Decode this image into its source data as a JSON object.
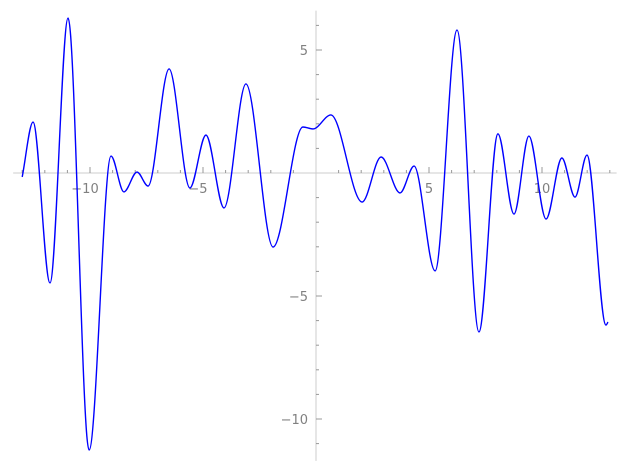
{
  "chart_data": {
    "type": "line",
    "title": "",
    "xlabel": "",
    "ylabel": "",
    "xlim": [
      -13.4,
      13.3
    ],
    "ylim": [
      -11.7,
      6.6
    ],
    "x_major_ticks": [
      -10,
      -5,
      5,
      10
    ],
    "x_tick_labels": [
      "−10",
      "−5",
      "5",
      "10"
    ],
    "y_major_ticks": [
      5,
      -5,
      -10
    ],
    "y_tick_labels": [
      "5",
      "−5",
      "−10"
    ],
    "minor_tick_step": 1,
    "grid": false,
    "line_color": "#0000ff",
    "axis_color": "#cccccc",
    "series": [
      {
        "x": [
          -13.0,
          -12.52,
          -11.77,
          -10.97,
          -10.04,
          -9.07,
          -8.5,
          -7.92,
          -7.43,
          -6.5,
          -5.58,
          -4.87,
          -4.07,
          -3.1,
          -1.9,
          -0.58,
          -0.13,
          0.66,
          2.04,
          2.88,
          3.72,
          4.34,
          5.27,
          6.24,
          7.21,
          8.05,
          8.76,
          9.42,
          10.18,
          10.88,
          11.46,
          11.99,
          12.83,
          12.92
        ],
        "y": [
          -0.16,
          2.07,
          -4.47,
          6.3,
          -11.26,
          0.69,
          -0.77,
          0.04,
          -0.53,
          4.23,
          -0.61,
          1.54,
          -1.42,
          3.62,
          -3.01,
          1.87,
          1.79,
          2.36,
          -1.18,
          0.65,
          -0.81,
          0.28,
          -3.98,
          5.81,
          -6.46,
          1.59,
          -1.67,
          1.5,
          -1.87,
          0.61,
          -0.98,
          0.73,
          -6.18,
          -6.06
        ]
      }
    ]
  }
}
